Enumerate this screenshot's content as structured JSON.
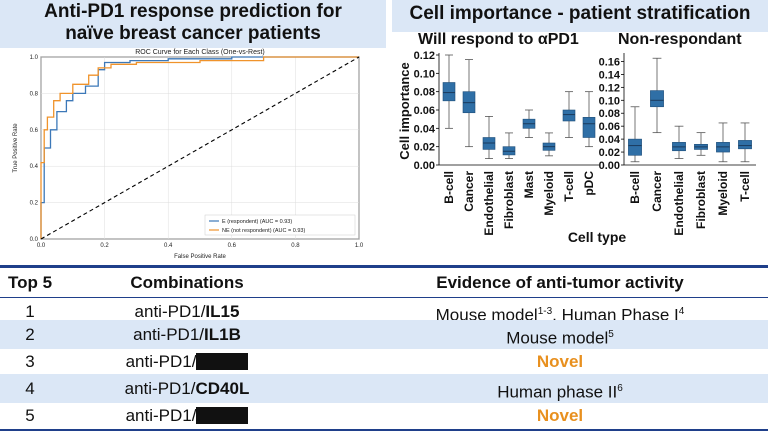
{
  "left_panel": {
    "title_line1": "Anti-PD1 response prediction for",
    "title_line2": "naïve breast cancer patients"
  },
  "roc_chart": {
    "title": "ROC Curve for Each Class (One-vs-Rest)",
    "xlabel": "False Positive Rate",
    "ylabel": "True Positive Rate",
    "ticks": [
      "0.0",
      "0.2",
      "0.4",
      "0.6",
      "0.8",
      "1.0"
    ],
    "legend": [
      "E (respondent) (AUC = 0.93)",
      "NE (not respondent) (AUC = 0.93)"
    ],
    "colors": {
      "E": "#3c78b8",
      "NE": "#f0932b"
    }
  },
  "right_panel": {
    "title": "Cell importance - patient stratification",
    "sub_respond": "Will respond to αPD1",
    "sub_nonrespond": "Non-respondant",
    "ylabel": "Cell importance",
    "xlabel": "Cell type"
  },
  "chart_data": [
    {
      "type": "line",
      "title": "ROC Curve for Each Class (One-vs-Rest)",
      "xlabel": "False Positive Rate",
      "ylabel": "True Positive Rate",
      "xlim": [
        0,
        1
      ],
      "ylim": [
        0,
        1
      ],
      "legend_position": "bottom-right",
      "series": [
        {
          "name": "E (respondent) (AUC = 0.93)",
          "color": "#3c78b8",
          "x": [
            0,
            0,
            0.01,
            0.01,
            0.03,
            0.03,
            0.05,
            0.05,
            0.08,
            0.08,
            0.1,
            0.1,
            0.14,
            0.14,
            0.18,
            0.18,
            0.2,
            0.2,
            0.28,
            0.28,
            0.4,
            0.4,
            0.6,
            0.6,
            1.0
          ],
          "y": [
            0,
            0.2,
            0.2,
            0.5,
            0.5,
            0.6,
            0.6,
            0.7,
            0.7,
            0.76,
            0.76,
            0.8,
            0.8,
            0.84,
            0.84,
            0.93,
            0.93,
            0.97,
            0.97,
            0.98,
            0.98,
            0.99,
            0.99,
            1.0,
            1.0
          ]
        },
        {
          "name": "NE (not respondent) (AUC = 0.93)",
          "color": "#f0932b",
          "x": [
            0,
            0,
            0.01,
            0.01,
            0.02,
            0.02,
            0.04,
            0.04,
            0.06,
            0.06,
            0.1,
            0.1,
            0.15,
            0.15,
            0.18,
            0.18,
            0.22,
            0.22,
            0.3,
            0.3,
            0.5,
            0.5,
            0.7,
            0.7,
            1.0
          ],
          "y": [
            0,
            0.42,
            0.42,
            0.6,
            0.6,
            0.67,
            0.67,
            0.76,
            0.76,
            0.8,
            0.8,
            0.85,
            0.85,
            0.9,
            0.9,
            0.94,
            0.94,
            0.96,
            0.96,
            0.97,
            0.97,
            0.98,
            0.98,
            1.0,
            1.0
          ]
        },
        {
          "name": "",
          "color": "#000000",
          "dashed": true,
          "x": [
            0,
            1
          ],
          "y": [
            0,
            1
          ]
        }
      ]
    },
    {
      "type": "box",
      "title": "Will respond to αPD1",
      "ylabel": "Cell importance",
      "ylim": [
        0,
        0.12
      ],
      "yticks": [
        "0.00",
        "0.02",
        "0.04",
        "0.06",
        "0.08",
        "0.10",
        "0.12"
      ],
      "categories": [
        "B-cell",
        "Cancer",
        "Endothelial",
        "Fibroblast",
        "Mast",
        "Myeloid",
        "T-cell",
        "pDC"
      ],
      "boxes": [
        {
          "whisker_low": 0.04,
          "q1": 0.07,
          "median": 0.079,
          "q3": 0.09,
          "whisker_high": 0.12
        },
        {
          "whisker_low": 0.02,
          "q1": 0.057,
          "median": 0.068,
          "q3": 0.08,
          "whisker_high": 0.115
        },
        {
          "whisker_low": 0.007,
          "q1": 0.017,
          "median": 0.024,
          "q3": 0.03,
          "whisker_high": 0.053
        },
        {
          "whisker_low": 0.007,
          "q1": 0.011,
          "median": 0.015,
          "q3": 0.02,
          "whisker_high": 0.035
        },
        {
          "whisker_low": 0.03,
          "q1": 0.04,
          "median": 0.045,
          "q3": 0.05,
          "whisker_high": 0.06
        },
        {
          "whisker_low": 0.01,
          "q1": 0.016,
          "median": 0.02,
          "q3": 0.024,
          "whisker_high": 0.035
        },
        {
          "whisker_low": 0.03,
          "q1": 0.048,
          "median": 0.055,
          "q3": 0.06,
          "whisker_high": 0.08
        },
        {
          "whisker_low": 0.02,
          "q1": 0.03,
          "median": 0.045,
          "q3": 0.052,
          "whisker_high": 0.08
        }
      ]
    },
    {
      "type": "box",
      "title": "Non-respondant",
      "ylim": [
        0,
        0.17
      ],
      "yticks": [
        "0.00",
        "0.02",
        "0.04",
        "0.06",
        "0.08",
        "0.10",
        "0.12",
        "0.14",
        "0.16"
      ],
      "categories": [
        "B-cell",
        "Cancer",
        "Endothelial",
        "Fibroblast",
        "Myeloid",
        "T-cell"
      ],
      "xlabel": "Cell type",
      "boxes": [
        {
          "whisker_low": 0.005,
          "q1": 0.015,
          "median": 0.03,
          "q3": 0.04,
          "whisker_high": 0.09
        },
        {
          "whisker_low": 0.05,
          "q1": 0.09,
          "median": 0.1,
          "q3": 0.115,
          "whisker_high": 0.165
        },
        {
          "whisker_low": 0.01,
          "q1": 0.022,
          "median": 0.028,
          "q3": 0.035,
          "whisker_high": 0.06
        },
        {
          "whisker_low": 0.015,
          "q1": 0.024,
          "median": 0.028,
          "q3": 0.032,
          "whisker_high": 0.05
        },
        {
          "whisker_low": 0.005,
          "q1": 0.02,
          "median": 0.028,
          "q3": 0.035,
          "whisker_high": 0.065
        },
        {
          "whisker_low": 0.005,
          "q1": 0.025,
          "median": 0.03,
          "q3": 0.038,
          "whisker_high": 0.065
        }
      ]
    }
  ],
  "table": {
    "headers": [
      "Top 5",
      "Combinations",
      "Evidence of anti-tumor activity"
    ],
    "rows": [
      {
        "rank": "1",
        "combo_prefix": "anti-PD1/",
        "combo_bold": "IL15",
        "evidence": "Mouse model",
        "sup1": "1-3",
        "evidence2": ", Human Phase I",
        "sup2": "4",
        "novel": false
      },
      {
        "rank": "2",
        "combo_prefix": "anti-PD1/",
        "combo_bold": "IL1B",
        "evidence": "Mouse model",
        "sup1": "5",
        "novel": false
      },
      {
        "rank": "3",
        "combo_prefix": "anti-PD1/",
        "redacted": true,
        "evidence": "Novel",
        "novel": true
      },
      {
        "rank": "4",
        "combo_prefix": "anti-PD1/",
        "combo_bold": "CD40L",
        "evidence": "Human phase II",
        "sup1": "6",
        "novel": false
      },
      {
        "rank": "5",
        "combo_prefix": "anti-PD1/",
        "redacted": true,
        "evidence": "Novel",
        "novel": true
      }
    ]
  }
}
